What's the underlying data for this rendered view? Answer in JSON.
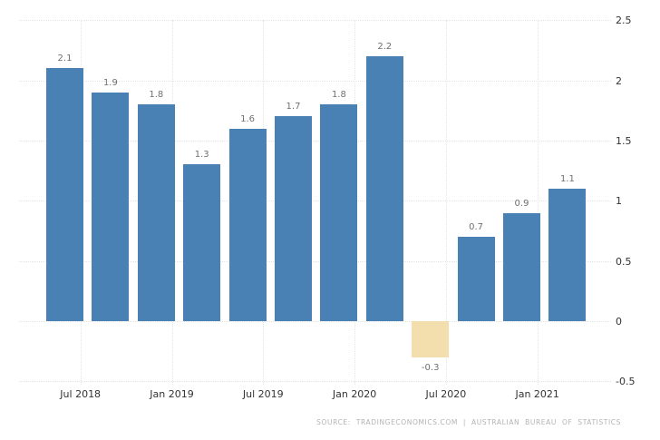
{
  "chart": {
    "source_credit": "SOURCE: TRADINGECONOMICS.COM | AUSTRALIAN BUREAU OF STATISTICS",
    "colors": {
      "background": "#ffffff",
      "bar_positive": "#4a81b4",
      "bar_negative": "#f2dfad",
      "gridline": "#e4e4e4",
      "value_label": "#707070",
      "axis_label": "#333333",
      "source_text": "#b3b3b3"
    }
  },
  "chart_data": {
    "type": "bar",
    "title": "",
    "xlabel": "",
    "ylabel": "",
    "legend": "none",
    "grid": true,
    "gridline_style": "dotted",
    "y_axis_side": "right",
    "values": [
      2.1,
      1.9,
      1.8,
      1.3,
      1.6,
      1.7,
      1.8,
      2.2,
      -0.3,
      0.7,
      0.9,
      1.1
    ],
    "bar_labels": [
      "2.1",
      "1.9",
      "1.8",
      "1.3",
      "1.6",
      "1.7",
      "1.8",
      "2.2",
      "-0.3",
      "0.7",
      "0.9",
      "1.1"
    ],
    "negative_bar_indexes": [
      8
    ],
    "x_tick_labels": [
      "Jul 2018",
      "Jan 2019",
      "Jul 2019",
      "Jan 2020",
      "Jul 2020",
      "Jan 2021"
    ],
    "y_tick_labels": [
      "2.5",
      "2",
      "1.5",
      "1",
      "0.5",
      "0",
      "-0.5"
    ],
    "y_tick_values": [
      2.5,
      2,
      1.5,
      1,
      0.5,
      0,
      -0.5
    ],
    "ylim": [
      -0.5,
      2.5
    ]
  }
}
